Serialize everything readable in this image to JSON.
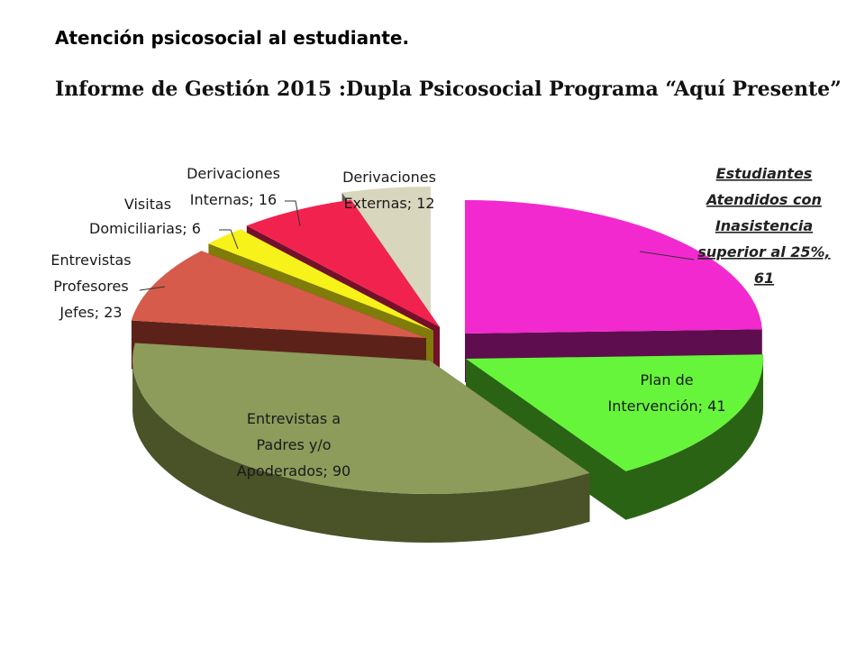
{
  "header": {
    "title": "Atención psicosocial al estudiante.",
    "subtitle": "Informe de Gestión 2015 :Dupla Psicosocial Programa “Aquí Presente”"
  },
  "chart_data": {
    "type": "pie",
    "title": "",
    "slices": [
      {
        "category": "Estudiantes Atendidos con Inasistencia superior al 25%",
        "value": 61,
        "color": "#F229CF",
        "side": "#5E0D4F",
        "label_lines": [
          "Estudiantes",
          "Atendidos con",
          "Inasistencia",
          "superior al 25%,",
          "61"
        ]
      },
      {
        "category": "Plan de Intervención",
        "value": 41,
        "color": "#66F53A",
        "side": "#2B6315",
        "label_lines": [
          "Plan de",
          "Intervención; 41"
        ]
      },
      {
        "category": "Entrevistas a Padres y/o Apoderados",
        "value": 90,
        "color": "#8D9B5B",
        "side": "#4A5228",
        "label_lines": [
          "Entrevistas a",
          "Padres y/o",
          "Apoderados; 90"
        ]
      },
      {
        "category": "Entrevistas Profesores Jefes",
        "value": 23,
        "color": "#D65B4A",
        "side": "#5C2219",
        "label_lines": [
          "Entrevistas",
          "Profesores",
          "Jefes; 23"
        ]
      },
      {
        "category": "Visitas Domiciliarias",
        "value": 6,
        "color": "#F6F21A",
        "side": "#7F7C0A",
        "label_lines": [
          "Visitas",
          "Domiciliarias; 6"
        ]
      },
      {
        "category": "Derivaciones Internas",
        "value": 16,
        "color": "#F2224F",
        "side": "#73112A",
        "label_lines": [
          "Derivaciones",
          "Internas; 16"
        ]
      },
      {
        "category": "Derivaciones Externas",
        "value": 12,
        "color": "#D9D6BE",
        "side": "#5D5D55",
        "label_lines": [
          "Derivaciones",
          "Externas; 12"
        ]
      }
    ]
  }
}
